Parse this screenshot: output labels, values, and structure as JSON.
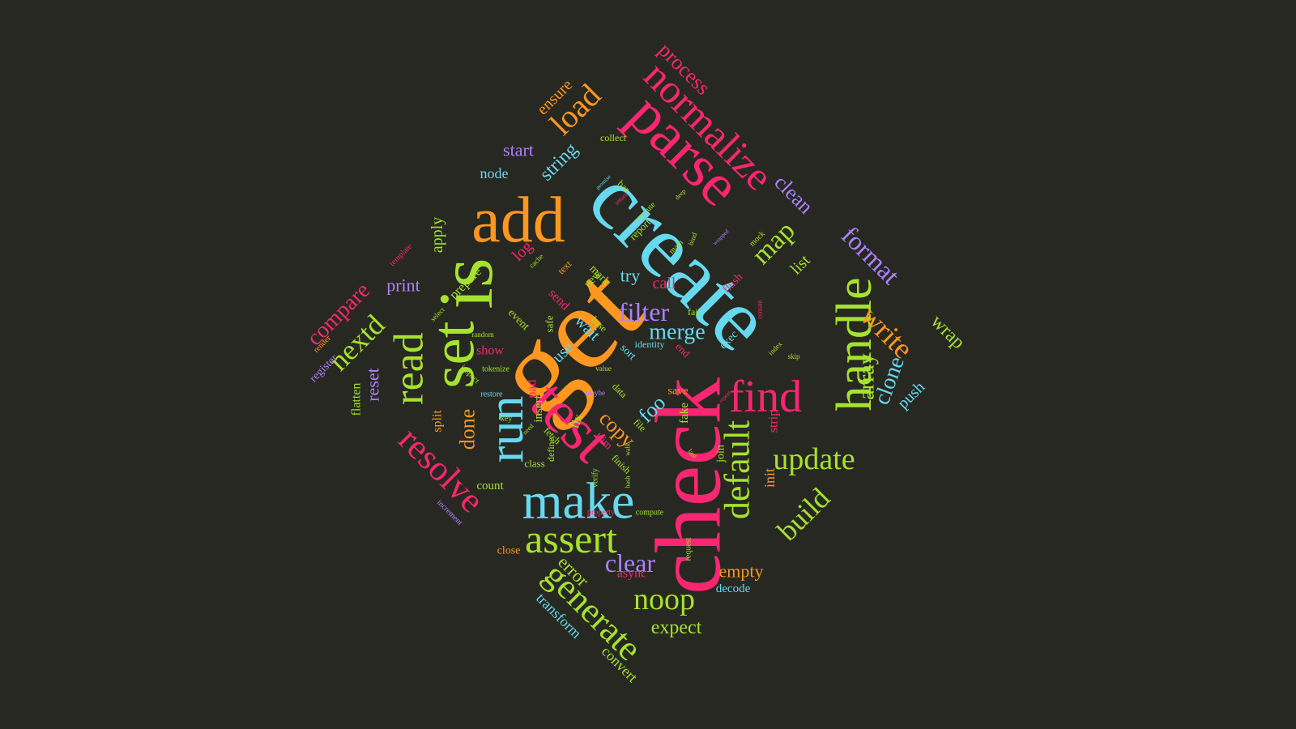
{
  "palette": {
    "background": "#272822",
    "pink": "#F92672",
    "green": "#A6E22E",
    "cyan": "#66D9EF",
    "orange": "#FD971F",
    "purple": "#AE81FF"
  },
  "words": [
    {
      "text": "get",
      "color": "orange"
    },
    {
      "text": "create",
      "color": "cyan"
    },
    {
      "text": "check",
      "color": "pink"
    },
    {
      "text": "is",
      "color": "green"
    },
    {
      "text": "test",
      "color": "pink"
    },
    {
      "text": "parse",
      "color": "pink"
    },
    {
      "text": "add",
      "color": "orange"
    },
    {
      "text": "set",
      "color": "green"
    },
    {
      "text": "run",
      "color": "cyan"
    },
    {
      "text": "make",
      "color": "cyan"
    },
    {
      "text": "normalize",
      "color": "pink"
    },
    {
      "text": "handle",
      "color": "green"
    },
    {
      "text": "find",
      "color": "pink"
    },
    {
      "text": "read",
      "color": "green"
    },
    {
      "text": "resolve",
      "color": "pink"
    },
    {
      "text": "default",
      "color": "green"
    },
    {
      "text": "assert",
      "color": "green"
    },
    {
      "text": "generate",
      "color": "green"
    },
    {
      "text": "update",
      "color": "green"
    },
    {
      "text": "write",
      "color": "orange"
    },
    {
      "text": "format",
      "color": "purple"
    },
    {
      "text": "build",
      "color": "green"
    },
    {
      "text": "load",
      "color": "orange"
    },
    {
      "text": "map",
      "color": "green"
    },
    {
      "text": "noop",
      "color": "green"
    },
    {
      "text": "filter",
      "color": "purple"
    },
    {
      "text": "nextd",
      "color": "green"
    },
    {
      "text": "compare",
      "color": "pink"
    },
    {
      "text": "array",
      "color": "green"
    },
    {
      "text": "clone",
      "color": "cyan"
    },
    {
      "text": "merge",
      "color": "cyan"
    },
    {
      "text": "clear",
      "color": "purple"
    },
    {
      "text": "copy",
      "color": "orange"
    },
    {
      "text": "wrap",
      "color": "green"
    },
    {
      "text": "process",
      "color": "pink"
    },
    {
      "text": "clean",
      "color": "purple"
    },
    {
      "text": "string",
      "color": "cyan"
    },
    {
      "text": "foo",
      "color": "cyan"
    },
    {
      "text": "done",
      "color": "orange"
    },
    {
      "text": "expect",
      "color": "green"
    },
    {
      "text": "error",
      "color": "green"
    },
    {
      "text": "reset",
      "color": "purple"
    },
    {
      "text": "list",
      "color": "green"
    },
    {
      "text": "push",
      "color": "cyan"
    },
    {
      "text": "apply",
      "color": "green"
    },
    {
      "text": "print",
      "color": "purple"
    },
    {
      "text": "start",
      "color": "purple"
    },
    {
      "text": "ensure",
      "color": "orange"
    },
    {
      "text": "call",
      "color": "pink"
    },
    {
      "text": "try",
      "color": "cyan"
    },
    {
      "text": "empty",
      "color": "orange"
    },
    {
      "text": "log",
      "color": "pink"
    },
    {
      "text": "use",
      "color": "cyan"
    },
    {
      "text": "convert",
      "color": "green"
    },
    {
      "text": "transform",
      "color": "cyan"
    },
    {
      "text": "split",
      "color": "orange"
    },
    {
      "text": "async",
      "color": "pink"
    },
    {
      "text": "init",
      "color": "orange"
    },
    {
      "text": "strip",
      "color": "pink"
    },
    {
      "text": "node",
      "color": "cyan"
    },
    {
      "text": "wait",
      "color": "cyan"
    },
    {
      "text": "prepare",
      "color": "green"
    },
    {
      "text": "send",
      "color": "pink"
    },
    {
      "text": "show",
      "color": "pink"
    },
    {
      "text": "flatten",
      "color": "green"
    },
    {
      "text": "register",
      "color": "purple"
    },
    {
      "text": "count",
      "color": "green"
    },
    {
      "text": "decode",
      "color": "cyan"
    },
    {
      "text": "close",
      "color": "orange"
    },
    {
      "text": "mark",
      "color": "green"
    },
    {
      "text": "pad",
      "color": "pink"
    },
    {
      "text": "sort",
      "color": "cyan"
    },
    {
      "text": "fix",
      "color": "green"
    },
    {
      "text": "insert",
      "color": "green"
    },
    {
      "text": "event",
      "color": "green"
    },
    {
      "text": "safe",
      "color": "green"
    },
    {
      "text": "class",
      "color": "green"
    },
    {
      "text": "fake",
      "color": "green"
    },
    {
      "text": "save",
      "color": "orange"
    },
    {
      "text": "trim",
      "color": "pink"
    },
    {
      "text": "file",
      "color": "green"
    },
    {
      "text": "exec",
      "color": "cyan"
    },
    {
      "text": "end",
      "color": "pink"
    },
    {
      "text": "fail",
      "color": "green"
    },
    {
      "text": "flush",
      "color": "pink"
    },
    {
      "text": "join",
      "color": "green"
    },
    {
      "text": "define",
      "color": "green"
    },
    {
      "text": "fetch",
      "color": "green"
    },
    {
      "text": "finish",
      "color": "green"
    },
    {
      "text": "new",
      "color": "green"
    },
    {
      "text": "base",
      "color": "green"
    },
    {
      "text": "bar",
      "color": "green"
    },
    {
      "text": "report",
      "color": "green"
    },
    {
      "text": "collect",
      "color": "green"
    },
    {
      "text": "identity",
      "color": "cyan"
    },
    {
      "text": "text",
      "color": "orange"
    },
    {
      "text": "data",
      "color": "green"
    },
    {
      "text": "key",
      "color": "green"
    },
    {
      "text": "tokenize",
      "color": "green"
    },
    {
      "text": "restore",
      "color": "cyan"
    },
    {
      "text": "inspect",
      "color": "green"
    },
    {
      "text": "render",
      "color": "orange"
    },
    {
      "text": "increment",
      "color": "purple"
    },
    {
      "text": "template",
      "color": "pink"
    },
    {
      "text": "property",
      "color": "pink"
    },
    {
      "text": "compute",
      "color": "green"
    },
    {
      "text": "verify",
      "color": "green"
    },
    {
      "text": "request",
      "color": "green"
    },
    {
      "text": "execute",
      "color": "green"
    },
    {
      "text": "main",
      "color": "green"
    },
    {
      "text": "bind",
      "color": "green"
    },
    {
      "text": "cache",
      "color": "green"
    },
    {
      "text": "random",
      "color": "green"
    },
    {
      "text": "select",
      "color": "green"
    },
    {
      "text": "maybe",
      "color": "purple"
    },
    {
      "text": "value",
      "color": "green"
    },
    {
      "text": "index",
      "color": "green"
    },
    {
      "text": "skip",
      "color": "green"
    },
    {
      "text": "hash",
      "color": "green"
    },
    {
      "text": "last",
      "color": "green"
    },
    {
      "text": "walk",
      "color": "green"
    },
    {
      "text": "need",
      "color": "green"
    },
    {
      "text": "mock",
      "color": "green"
    },
    {
      "text": "contain",
      "color": "pink"
    },
    {
      "text": "return",
      "color": "pink"
    },
    {
      "text": "deep",
      "color": "green"
    },
    {
      "text": "promise",
      "color": "cyan"
    },
    {
      "text": "wrapped",
      "color": "purple"
    },
    {
      "text": "repeat",
      "color": "pink"
    },
    {
      "text": "disable",
      "color": "green"
    }
  ]
}
